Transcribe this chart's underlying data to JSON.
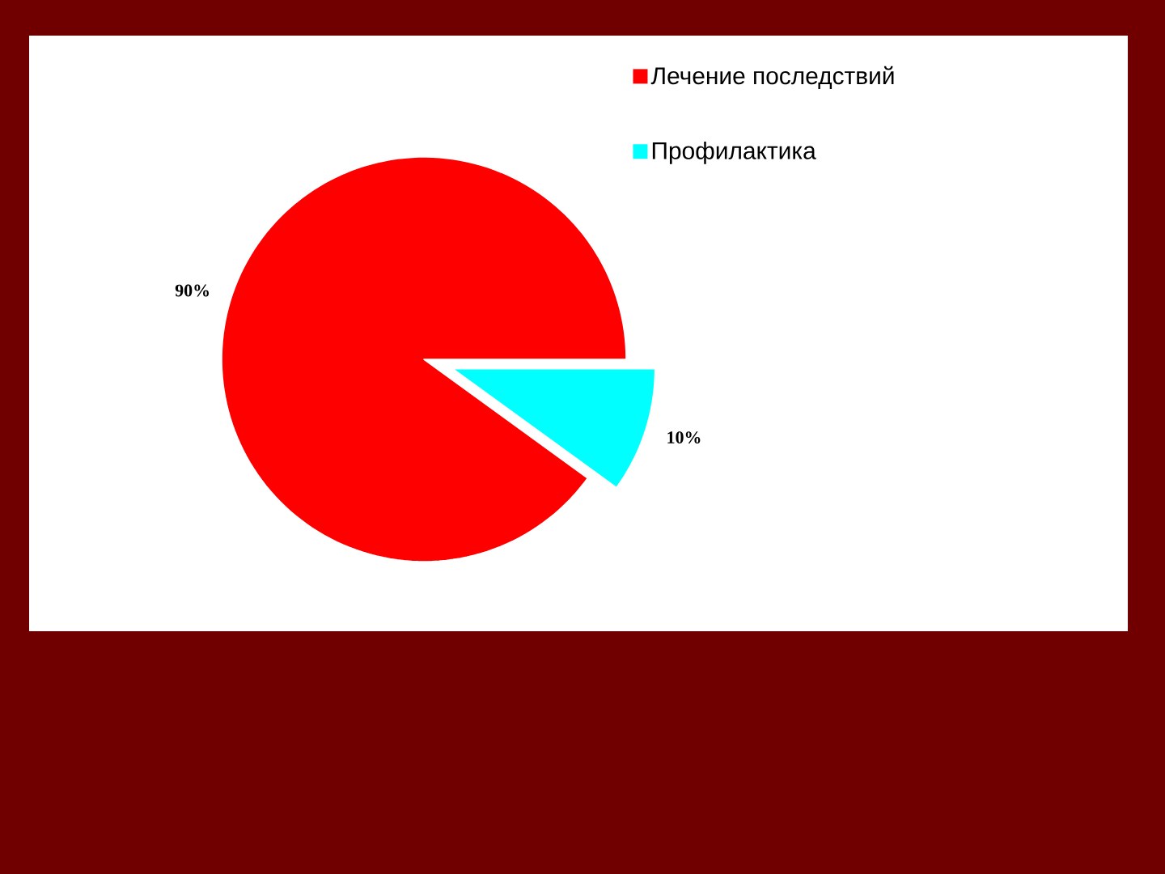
{
  "chart_data": {
    "type": "pie",
    "categories": [
      "Лечение последствий",
      "Профилактика"
    ],
    "values": [
      90,
      10
    ],
    "colors": [
      "#ff0000",
      "#00ffff"
    ],
    "value_labels": [
      "90%",
      "10%"
    ],
    "legend": "top right"
  }
}
